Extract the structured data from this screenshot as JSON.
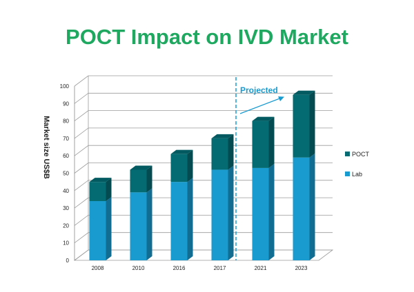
{
  "title": "POCT Impact on IVD Market",
  "chart_data": {
    "type": "bar",
    "stacked": true,
    "three_d": true,
    "title": "POCT Impact on IVD Market",
    "ylabel": "Market size US$B",
    "xlabel": "",
    "ylim": [
      0,
      100
    ],
    "yticks": [
      0,
      10,
      20,
      30,
      40,
      50,
      60,
      70,
      80,
      90,
      100
    ],
    "grid": true,
    "legend_position": "right",
    "categories": [
      "2008",
      "2010",
      "2016",
      "2017",
      "2021",
      "2023"
    ],
    "series": [
      {
        "name": "Lab",
        "color": "#1a9bd0",
        "values": [
          34,
          39,
          45,
          52,
          53,
          59
        ]
      },
      {
        "name": "POCT",
        "color": "#046b72",
        "values": [
          11,
          13,
          16,
          18,
          27,
          36
        ]
      }
    ],
    "annotation": {
      "text": "Projected",
      "color": "#1a9bd0",
      "divider_between": [
        "2017",
        "2021"
      ]
    }
  }
}
